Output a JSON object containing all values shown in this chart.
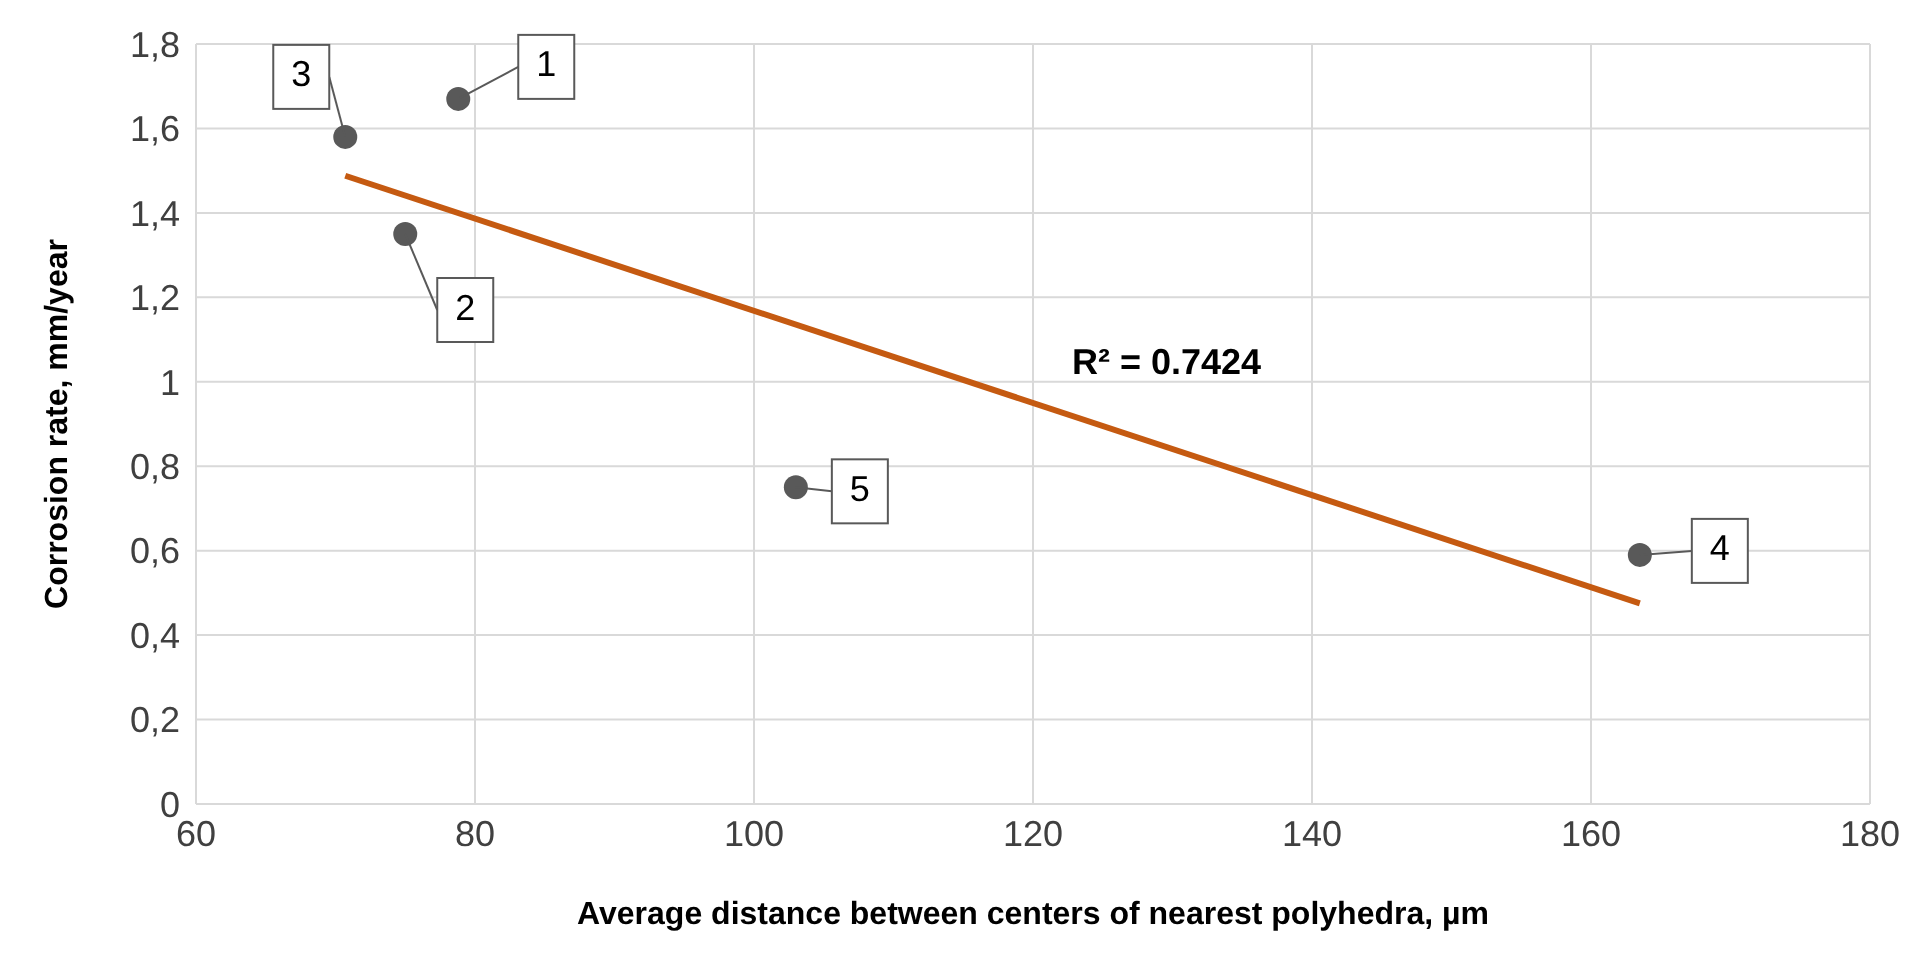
{
  "chart_data": {
    "type": "scatter",
    "xlabel": "Average distance between centers of nearest polyhedra, µm",
    "ylabel": "Corrosion rate, mm/year",
    "xlim": [
      60,
      180
    ],
    "xticks": [
      60,
      80,
      100,
      120,
      140,
      160,
      180
    ],
    "ylim": [
      0,
      1.8
    ],
    "yticks": [
      0,
      {
        "value": 0.2,
        "label": "0,2"
      },
      {
        "value": 0.4,
        "label": "0,4"
      },
      {
        "value": 0.6,
        "label": "0,6"
      },
      {
        "value": 0.8,
        "label": "0,8"
      },
      1,
      {
        "value": 1.2,
        "label": "1,2"
      },
      {
        "value": 1.4,
        "label": "1,4"
      },
      {
        "value": 1.6,
        "label": "1,6"
      },
      {
        "value": 1.8,
        "label": "1,8"
      }
    ],
    "grid": true,
    "legend": false,
    "series": [
      {
        "marker": "circle",
        "color": "#595959",
        "x": [
          78.8,
          75.0,
          70.7,
          163.5,
          103.0
        ],
        "values": [
          1.67,
          1.35,
          1.58,
          0.59,
          0.75
        ]
      },
      {
        "type": "line",
        "color": "#c55a11",
        "x": [
          70.7,
          163.5
        ],
        "values": [
          1.488,
          0.475
        ]
      }
    ],
    "annotations": [
      {
        "text": "1",
        "x": 78.8,
        "y": 1.67
      },
      {
        "text": "2",
        "x": 75.0,
        "y": 1.35
      },
      {
        "text": "3",
        "x": 70.7,
        "y": 1.58
      },
      {
        "text": "4",
        "x": 163.5,
        "y": 0.59
      },
      {
        "text": "5",
        "x": 103.0,
        "y": 0.75
      },
      "R² = 0.7424"
    ]
  }
}
